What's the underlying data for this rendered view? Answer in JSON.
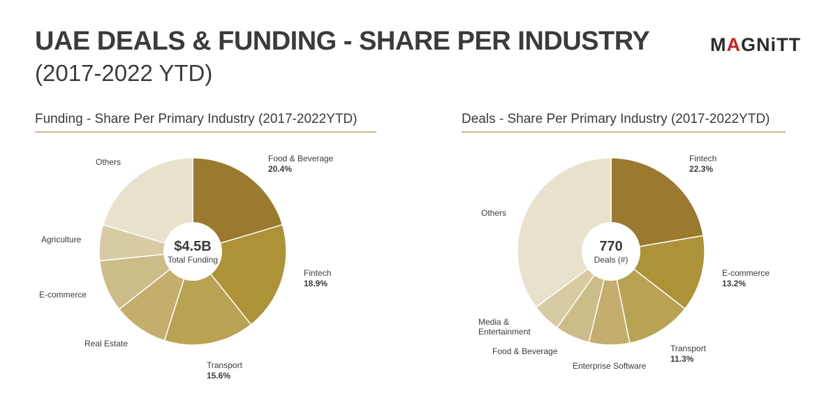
{
  "header": {
    "title": "UAE DEALS & FUNDING - SHARE PER INDUSTRY",
    "subtitle": "(2017-2022 YTD)",
    "logo_prefix": "M",
    "logo_accent": "A",
    "logo_suffix": "GNiTT"
  },
  "colors": {
    "accent": "#c8202b",
    "underline": "#c9b98f"
  },
  "chart_data": [
    {
      "type": "pie",
      "title": "Funding - Share Per Primary Industry (2017-2022YTD)",
      "center_value": "$4.5B",
      "center_label": "Total Funding",
      "slices": [
        {
          "label": "Food & Beverage",
          "value": 20.4,
          "pct_label": "20.4%",
          "color": "#9a7a2e"
        },
        {
          "label": "Fintech",
          "value": 18.9,
          "pct_label": "18.9%",
          "color": "#ad9237"
        },
        {
          "label": "Transport",
          "value": 15.6,
          "pct_label": "15.6%",
          "color": "#b9a253"
        },
        {
          "label": "Real Estate",
          "value": 9.5,
          "pct_label": "",
          "color": "#c3ae6d"
        },
        {
          "label": "E-commerce",
          "value": 9.0,
          "pct_label": "",
          "color": "#ccbc88"
        },
        {
          "label": "Agriculture",
          "value": 6.2,
          "pct_label": "",
          "color": "#d8cba3"
        },
        {
          "label": "Others",
          "value": 20.4,
          "pct_label": "",
          "color": "#e8e1cc"
        }
      ]
    },
    {
      "type": "pie",
      "title": "Deals - Share Per Primary Industry (2017-2022YTD)",
      "center_value": "770",
      "center_label": "Deals (#)",
      "slices": [
        {
          "label": "Fintech",
          "value": 22.3,
          "pct_label": "22.3%",
          "color": "#9a7a2e"
        },
        {
          "label": "E-commerce",
          "value": 13.2,
          "pct_label": "13.2%",
          "color": "#ad9237"
        },
        {
          "label": "Transport",
          "value": 11.3,
          "pct_label": "11.3%",
          "color": "#b9a253"
        },
        {
          "label": "Enterprise Software",
          "value": 7.0,
          "pct_label": "",
          "color": "#c3ae6d"
        },
        {
          "label": "Food & Beverage",
          "value": 6.0,
          "pct_label": "",
          "color": "#ccbc88"
        },
        {
          "label": "Media & Entertainment",
          "value": 5.0,
          "pct_label": "",
          "color": "#d8cba3"
        },
        {
          "label": "Others",
          "value": 35.2,
          "pct_label": "",
          "color": "#e8e1cc"
        }
      ]
    }
  ]
}
